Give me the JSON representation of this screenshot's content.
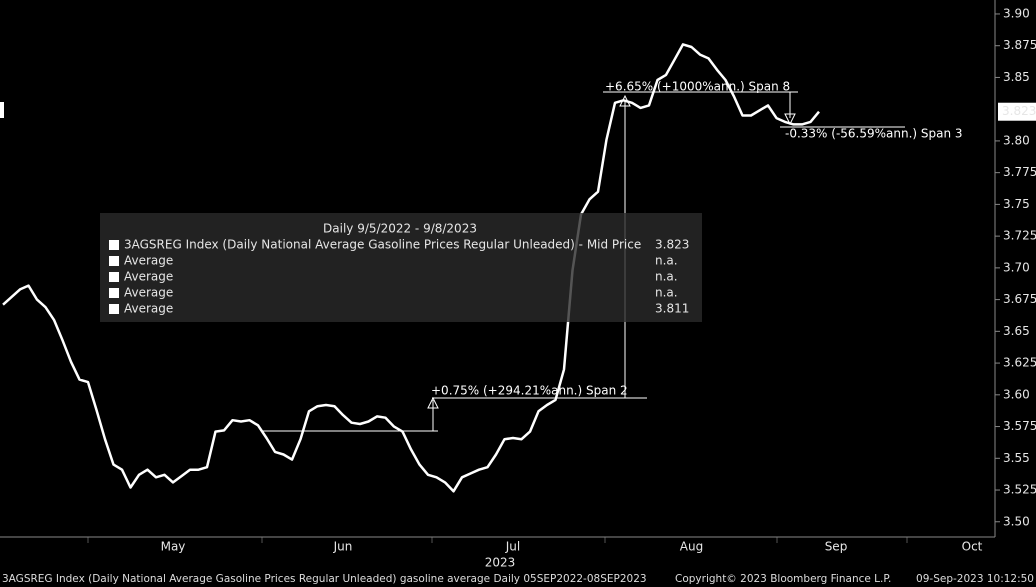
{
  "chart_data": {
    "type": "line",
    "categories": [
      null,
      null,
      null,
      null,
      null,
      null,
      null,
      null,
      null,
      null,
      null,
      null,
      null,
      null,
      null,
      null,
      null,
      null,
      null,
      null,
      "May",
      null,
      null,
      null,
      null,
      null,
      null,
      null,
      null,
      null,
      null,
      null,
      null,
      null,
      null,
      null,
      null,
      null,
      null,
      null,
      "Jun",
      null,
      null,
      null,
      null,
      null,
      null,
      null,
      null,
      null,
      null,
      null,
      null,
      null,
      null,
      null,
      null,
      null,
      null,
      null,
      "Jul",
      null,
      null,
      null,
      null,
      null,
      null,
      null,
      null,
      null,
      null,
      null,
      null,
      null,
      null,
      null,
      null,
      null,
      null,
      null,
      null,
      "Aug",
      null,
      null,
      null,
      null,
      null,
      null,
      null,
      null,
      null,
      null,
      null,
      null,
      null,
      null,
      null,
      null,
      "Sep",
      null,
      null,
      null,
      null,
      null,
      null,
      null,
      null,
      null,
      null,
      null,
      null,
      null,
      null,
      null,
      "Oct",
      null,
      null
    ],
    "year_label": "2023",
    "color": "#ffffff",
    "values": [
      3.671,
      3.677,
      3.683,
      3.686,
      3.675,
      3.669,
      3.659,
      3.643,
      3.626,
      3.612,
      3.61,
      3.588,
      3.565,
      3.545,
      3.541,
      3.527,
      3.537,
      3.541,
      3.535,
      3.537,
      3.531,
      3.536,
      3.541,
      3.541,
      3.543,
      3.571,
      3.572,
      3.58,
      3.579,
      3.58,
      3.576,
      3.566,
      3.555,
      3.553,
      3.549,
      3.565,
      3.587,
      3.591,
      3.592,
      3.591,
      3.584,
      3.578,
      3.577,
      3.579,
      3.583,
      3.582,
      3.575,
      3.571,
      3.557,
      3.545,
      3.537,
      3.535,
      3.531,
      3.524,
      3.535,
      3.538,
      3.541,
      3.543,
      3.553,
      3.565,
      3.566,
      3.565,
      3.571,
      3.587,
      3.592,
      3.596,
      3.62,
      3.698,
      3.742,
      3.754,
      3.76,
      3.801,
      3.83,
      3.832,
      3.83,
      3.826,
      3.828,
      3.848,
      3.852,
      3.864,
      3.876,
      3.874,
      3.868,
      3.865,
      3.856,
      3.848,
      3.835,
      3.82,
      3.82,
      3.824,
      3.828,
      3.818,
      3.815,
      3.813,
      3.813,
      3.815,
      3.823,
      null,
      null,
      null,
      null,
      null,
      null,
      null,
      null,
      null,
      null,
      null,
      null,
      null,
      null,
      null,
      null,
      null,
      null,
      null,
      null
    ],
    "ylim": [
      3.488,
      3.911
    ],
    "yticks": [
      {
        "value": 3.5,
        "label": "3.50"
      },
      3.525,
      3.55,
      3.575,
      {
        "value": 3.6,
        "label": "3.60"
      },
      3.625,
      3.65,
      3.675,
      {
        "value": 3.7,
        "label": "3.70"
      },
      3.725,
      3.75,
      3.775,
      {
        "value": 3.8,
        "label": "3.80"
      },
      3.85,
      3.875,
      {
        "value": 3.9,
        "label": "3.90"
      }
    ],
    "annotations": [
      "+0.75% (+294.21%ann.) Span 2",
      "+6.65% (+1000%ann.) Span 8",
      "-0.33% (-56.59%ann.) Span 3"
    ],
    "legend": {
      "title": "Daily 9/5/2022 - 9/8/2023",
      "rows": [
        {
          "name": "3AGSREG Index (Daily National Average Gasoline Prices Regular Unleaded) - Mid Price",
          "value": "3.823"
        },
        {
          "name": "Average",
          "value": "n.a."
        },
        {
          "name": "Average",
          "value": "n.a."
        },
        {
          "name": "Average",
          "value": "n.a."
        },
        {
          "name": "Average",
          "value": "3.811"
        }
      ]
    },
    "footer": {
      "description": "3AGSREG Index (Daily National Average Gasoline Prices Regular Unleaded) gasoline average  Daily 05SEP2022-08SEP2023",
      "copyright": "Copyright© 2023 Bloomberg Finance L.P.",
      "timestamp": "09-Sep-2023 10:12:50"
    }
  }
}
